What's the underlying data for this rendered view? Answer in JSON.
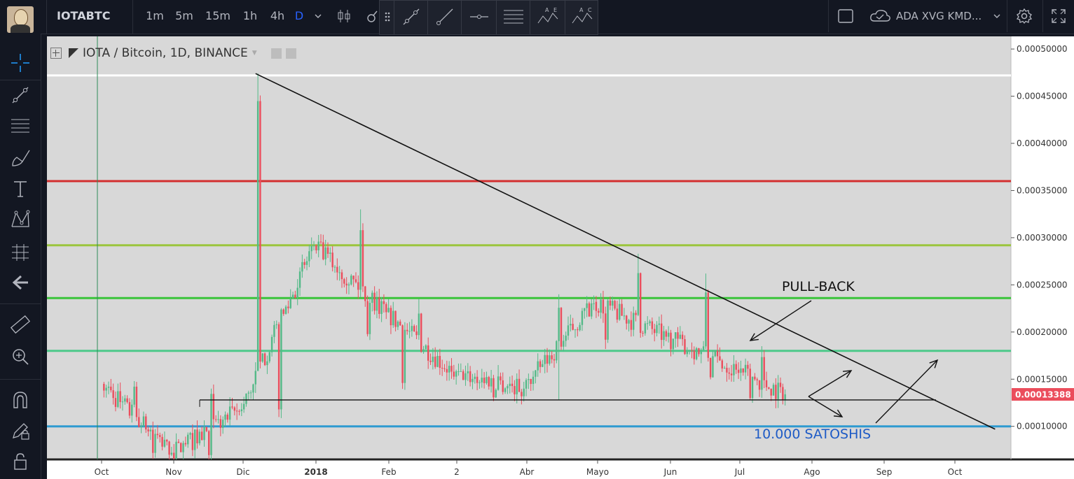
{
  "header": {
    "symbol": "IOTABTC",
    "intervals": [
      "1m",
      "5m",
      "15m",
      "1h",
      "4h",
      "D"
    ],
    "active_interval": "D",
    "compare": "ADA XVG KMD..."
  },
  "legend": {
    "title": "IOTA / Bitcoin, 1D, BINANCE"
  },
  "annotations": {
    "pullback": "PULL-BACK",
    "satoshis": "10.000 SATOSHIS"
  },
  "colors": {
    "up": "#53b987",
    "down": "#eb4d5c",
    "background": "#d8d8d8",
    "level_white": "#ffffff",
    "level_red": "#d32f2f",
    "level_yellowgreen": "#9bc53d",
    "level_green": "#3ac43a",
    "level_teal": "#4dc98a",
    "level_blue": "#2e9ad0",
    "price_badge": "#eb4d5c"
  },
  "chart_data": {
    "type": "candlestick",
    "title": "IOTA / Bitcoin, 1D, BINANCE",
    "x_ticks": [
      "Oct",
      "Nov",
      "Dic",
      "2018",
      "Feb",
      "2",
      "Abr",
      "Mayo",
      "Jun",
      "Jul",
      "Ago",
      "Sep",
      "Oct"
    ],
    "y_ticks": [
      "0.00050000",
      "0.00045000",
      "0.00040000",
      "0.00035000",
      "0.00030000",
      "0.00025000",
      "0.00020000",
      "0.00015000",
      "0.00010000"
    ],
    "ylim": [
      6e-05,
      0.00052
    ],
    "last_price": "0.00013388",
    "horizontal_levels": [
      0.000472,
      0.00036,
      0.000292,
      0.000236,
      0.00018,
      0.0001
    ],
    "support_level": 0.000128,
    "trendline": [
      [
        "2017-12-06",
        0.000474
      ],
      [
        "2018-10-19",
        9.7e-05
      ]
    ],
    "series_monthly": [
      {
        "period": "2017-10",
        "open": 0.000145,
        "close": 7.2e-05,
        "high": 0.000148,
        "low": 7e-05
      },
      {
        "period": "2017-11",
        "open": 7.2e-05,
        "close": 0.000118,
        "high": 0.00014,
        "low": 5.8e-05
      },
      {
        "period": "2017-12",
        "open": 0.000118,
        "close": 0.000292,
        "high": 0.000474,
        "low": 0.000118
      },
      {
        "period": "2018-01",
        "open": 0.000292,
        "close": 0.000221,
        "high": 0.00033,
        "low": 0.000196
      },
      {
        "period": "2018-02",
        "open": 0.000221,
        "close": 0.000158,
        "high": 0.000235,
        "low": 0.000146
      },
      {
        "period": "2018-03",
        "open": 0.000158,
        "close": 0.00014,
        "high": 0.000165,
        "low": 0.000128
      },
      {
        "period": "2018-04",
        "open": 0.00014,
        "close": 0.000232,
        "high": 0.00024,
        "low": 0.000128
      },
      {
        "period": "2018-05",
        "open": 0.000232,
        "close": 0.000195,
        "high": 0.000283,
        "low": 0.000182
      },
      {
        "period": "2018-06",
        "open": 0.000195,
        "close": 0.00016,
        "high": 0.000262,
        "low": 0.000152
      },
      {
        "period": "2018-07",
        "open": 0.00016,
        "close": 0.000134,
        "high": 0.000185,
        "low": 0.000128
      }
    ]
  }
}
